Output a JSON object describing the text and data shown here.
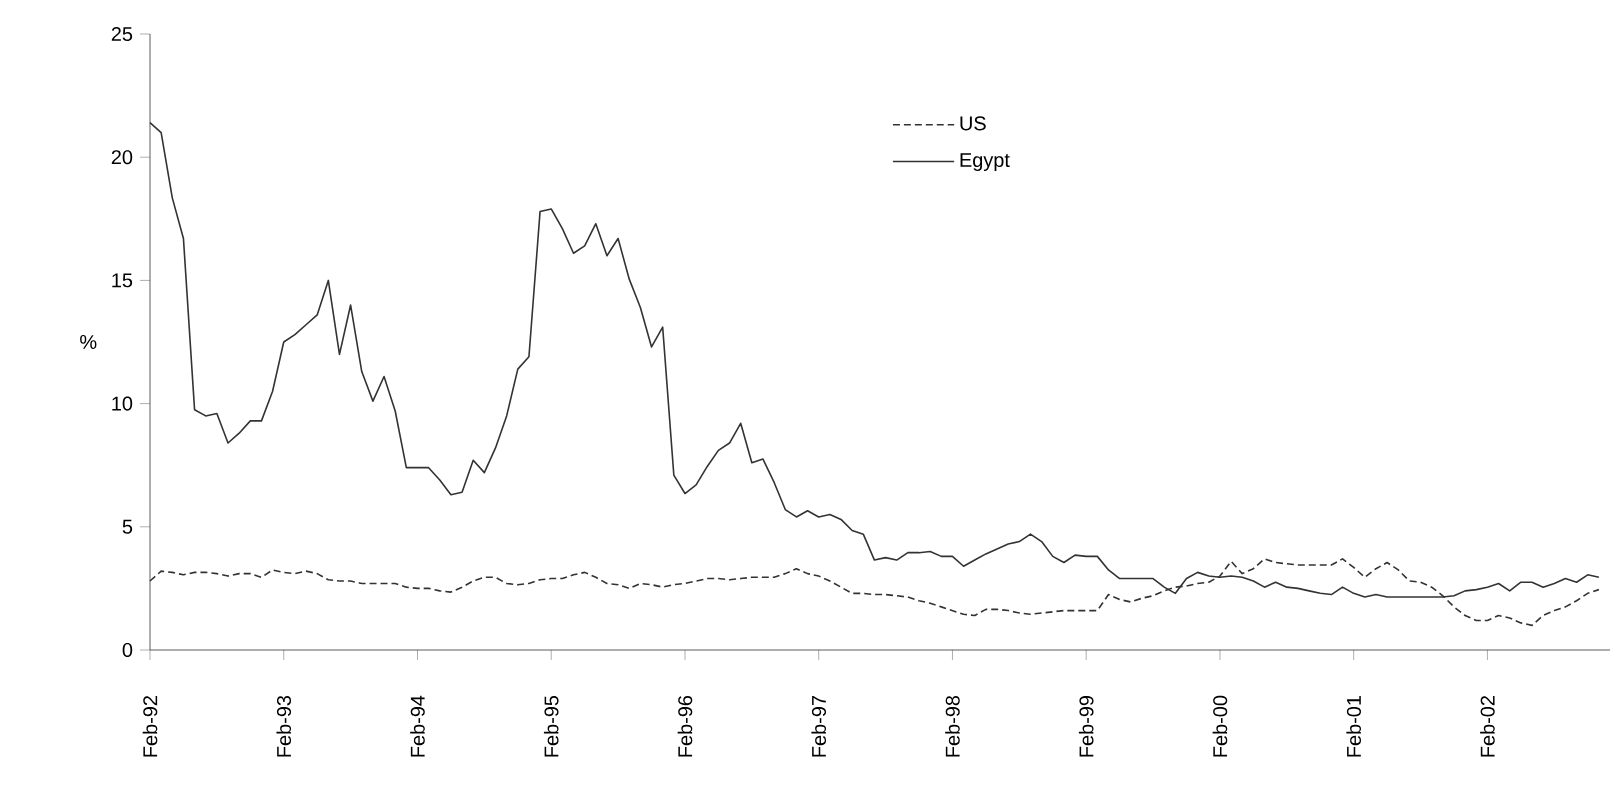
{
  "chart_data": {
    "type": "line",
    "ylabel": "%",
    "x": [
      "1992-02",
      "1992-03",
      "1992-04",
      "1992-05",
      "1992-06",
      "1992-07",
      "1992-08",
      "1992-09",
      "1992-10",
      "1992-11",
      "1992-12",
      "1993-01",
      "1993-02",
      "1993-03",
      "1993-04",
      "1993-05",
      "1993-06",
      "1993-07",
      "1993-08",
      "1993-09",
      "1993-10",
      "1993-11",
      "1993-12",
      "1994-01",
      "1994-02",
      "1994-03",
      "1994-04",
      "1994-05",
      "1994-06",
      "1994-07",
      "1994-08",
      "1994-09",
      "1994-10",
      "1994-11",
      "1994-12",
      "1995-01",
      "1995-02",
      "1995-03",
      "1995-04",
      "1995-05",
      "1995-06",
      "1995-07",
      "1995-08",
      "1995-09",
      "1995-10",
      "1995-11",
      "1995-12",
      "1996-01",
      "1996-02",
      "1996-03",
      "1996-04",
      "1996-05",
      "1996-06",
      "1996-07",
      "1996-08",
      "1996-09",
      "1996-10",
      "1996-11",
      "1996-12",
      "1997-01",
      "1997-02",
      "1997-03",
      "1997-04",
      "1997-05",
      "1997-06",
      "1997-07",
      "1997-08",
      "1997-09",
      "1997-10",
      "1997-11",
      "1997-12",
      "1998-01",
      "1998-02",
      "1998-03",
      "1998-04",
      "1998-05",
      "1998-06",
      "1998-07",
      "1998-08",
      "1998-09",
      "1998-10",
      "1998-11",
      "1998-12",
      "1999-01",
      "1999-02",
      "1999-03",
      "1999-04",
      "1999-05",
      "1999-06",
      "1999-07",
      "1999-08",
      "1999-09",
      "1999-10",
      "1999-11",
      "1999-12",
      "2000-01",
      "2000-02",
      "2000-03",
      "2000-04",
      "2000-05",
      "2000-06",
      "2000-07",
      "2000-08",
      "2000-09",
      "2000-10",
      "2000-11",
      "2000-12",
      "2001-01",
      "2001-02",
      "2001-03",
      "2001-04",
      "2001-05",
      "2001-06",
      "2001-07",
      "2001-08",
      "2001-09",
      "2001-10",
      "2001-11",
      "2001-12",
      "2002-01",
      "2002-02",
      "2002-03",
      "2002-04",
      "2002-05",
      "2002-06",
      "2002-07",
      "2002-08",
      "2002-09",
      "2002-10",
      "2002-11",
      "2002-12"
    ],
    "series": [
      {
        "name": "US",
        "color": "#333333",
        "line_style": "dashed",
        "values": [
          2.8,
          3.2,
          3.15,
          3.05,
          3.15,
          3.15,
          3.1,
          3.0,
          3.1,
          3.1,
          2.95,
          3.25,
          3.15,
          3.1,
          3.2,
          3.1,
          2.85,
          2.8,
          2.8,
          2.7,
          2.7,
          2.7,
          2.7,
          2.55,
          2.5,
          2.5,
          2.4,
          2.35,
          2.55,
          2.8,
          2.95,
          2.95,
          2.7,
          2.65,
          2.7,
          2.85,
          2.9,
          2.9,
          3.05,
          3.15,
          2.95,
          2.7,
          2.65,
          2.5,
          2.7,
          2.65,
          2.55,
          2.65,
          2.7,
          2.8,
          2.9,
          2.9,
          2.85,
          2.9,
          2.95,
          2.95,
          2.95,
          3.1,
          3.3,
          3.1,
          3.0,
          2.8,
          2.55,
          2.3,
          2.3,
          2.25,
          2.25,
          2.2,
          2.15,
          2.0,
          1.9,
          1.75,
          1.6,
          1.45,
          1.4,
          1.65,
          1.65,
          1.6,
          1.5,
          1.45,
          1.5,
          1.55,
          1.6,
          1.6,
          1.6,
          1.6,
          2.25,
          2.05,
          1.95,
          2.1,
          2.2,
          2.4,
          2.55,
          2.6,
          2.7,
          2.75,
          3.0,
          3.6,
          3.1,
          3.3,
          3.7,
          3.55,
          3.5,
          3.45,
          3.45,
          3.45,
          3.45,
          3.7,
          3.35,
          2.95,
          3.3,
          3.55,
          3.25,
          2.8,
          2.75,
          2.55,
          2.2,
          1.75,
          1.4,
          1.2,
          1.2,
          1.4,
          1.3,
          1.1,
          1.0,
          1.4,
          1.6,
          1.75,
          2.0,
          2.3,
          2.45
        ]
      },
      {
        "name": "Egypt",
        "color": "#333333",
        "line_style": "solid",
        "values": [
          21.4,
          21.0,
          18.35,
          16.7,
          9.75,
          9.5,
          9.6,
          8.4,
          8.8,
          9.3,
          9.3,
          10.5,
          12.5,
          12.8,
          13.2,
          13.6,
          15.0,
          12.0,
          14.0,
          11.3,
          10.1,
          11.1,
          9.7,
          7.4,
          7.4,
          7.4,
          6.9,
          6.3,
          6.4,
          7.7,
          7.2,
          8.2,
          9.5,
          11.4,
          11.9,
          17.8,
          17.9,
          17.1,
          16.1,
          16.4,
          17.3,
          16.0,
          16.7,
          15.05,
          13.9,
          12.3,
          13.1,
          7.1,
          6.35,
          6.7,
          7.45,
          8.1,
          8.4,
          9.2,
          7.6,
          7.75,
          6.8,
          5.7,
          5.4,
          5.65,
          5.4,
          5.5,
          5.3,
          4.85,
          4.7,
          3.65,
          3.75,
          3.65,
          3.95,
          3.95,
          4.0,
          3.8,
          3.8,
          3.4,
          3.65,
          3.9,
          4.1,
          4.3,
          4.4,
          4.7,
          4.4,
          3.8,
          3.55,
          3.85,
          3.8,
          3.8,
          3.25,
          2.9,
          2.9,
          2.9,
          2.9,
          2.55,
          2.3,
          2.9,
          3.15,
          3.0,
          2.95,
          3.0,
          2.95,
          2.8,
          2.55,
          2.75,
          2.55,
          2.5,
          2.4,
          2.3,
          2.25,
          2.55,
          2.3,
          2.15,
          2.25,
          2.15,
          2.15,
          2.15,
          2.15,
          2.15,
          2.15,
          2.2,
          2.4,
          2.45,
          2.55,
          2.7,
          2.4,
          2.75,
          2.75,
          2.55,
          2.7,
          2.9,
          2.75,
          3.05,
          2.95
        ]
      }
    ],
    "xlim": [
      "1992-02",
      "2003-01"
    ],
    "xticks": [
      {
        "value": "1992-02",
        "label": "Feb-92"
      },
      {
        "value": "1993-02",
        "label": "Feb-93"
      },
      {
        "value": "1994-02",
        "label": "Feb-94"
      },
      {
        "value": "1995-02",
        "label": "Feb-95"
      },
      {
        "value": "1996-02",
        "label": "Feb-96"
      },
      {
        "value": "1997-02",
        "label": "Feb-97"
      },
      {
        "value": "1998-02",
        "label": "Feb-98"
      },
      {
        "value": "1999-02",
        "label": "Feb-99"
      },
      {
        "value": "2000-02",
        "label": "Feb-00"
      },
      {
        "value": "2001-02",
        "label": "Feb-01"
      },
      {
        "value": "2002-02",
        "label": "Feb-02"
      }
    ],
    "ylim": [
      0,
      25
    ],
    "yticks": [
      0,
      5,
      10,
      15,
      20,
      25
    ],
    "grid": false,
    "legend": "top",
    "marker": "none"
  }
}
